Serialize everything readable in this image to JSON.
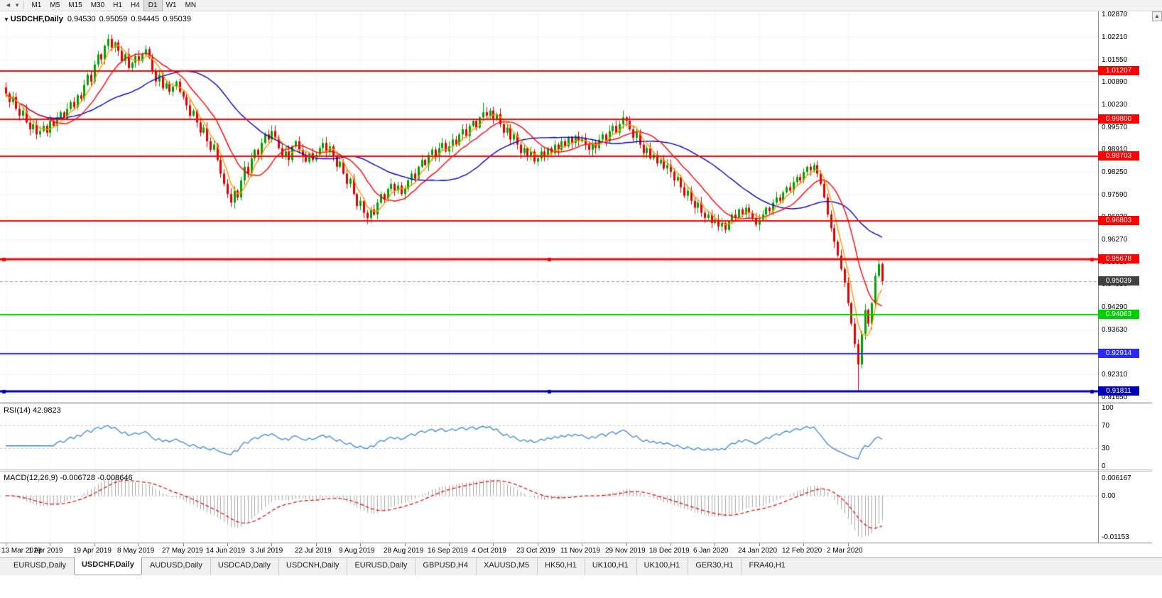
{
  "toolbar": {
    "timeframes": [
      "M1",
      "M5",
      "M15",
      "M30",
      "H1",
      "H4",
      "D1",
      "W1",
      "MN"
    ],
    "active_timeframe": "D1"
  },
  "chart_data": {
    "type": "candlestick",
    "symbol": "USDCHF",
    "timeframe": "Daily",
    "header_symbol": "USDCHF,Daily",
    "ohlc": {
      "open": "0.94530",
      "high": "0.95059",
      "low": "0.94445",
      "close": "0.95039"
    },
    "x_labels": [
      "13 Mar 2019",
      "1 Apr 2019",
      "19 Apr 2019",
      "8 May 2019",
      "27 May 2019",
      "14 Jun 2019",
      "3 Jul 2019",
      "22 Jul 2019",
      "9 Aug 2019",
      "28 Aug 2019",
      "16 Sep 2019",
      "4 Oct 2019",
      "23 Oct 2019",
      "11 Nov 2019",
      "29 Nov 2019",
      "18 Dec 2019",
      "6 Jan 2020",
      "24 Jan 2020",
      "12 Feb 2020",
      "2 Mar 2020"
    ],
    "label_indices": [
      0,
      13,
      26,
      39,
      52,
      65,
      78,
      91,
      104,
      117,
      130,
      143,
      156,
      169,
      182,
      195,
      208,
      221,
      234,
      247
    ],
    "price_axis_labels": [
      "1.02870",
      "1.02210",
      "1.01550",
      "1.00890",
      "1.00230",
      "0.99570",
      "0.98910",
      "0.98250",
      "0.97590",
      "0.96930",
      "0.96270",
      "0.95610",
      "0.94950",
      "0.94290",
      "0.93630",
      "0.92970",
      "0.92310",
      "0.91650"
    ],
    "price_top": 1.0296,
    "price_bottom": 0.915,
    "up_color": "#00A000",
    "down_color": "#E00000",
    "closes": [
      1.0055,
      1.003,
      1.0045,
      1.001,
      0.999,
      1.0005,
      0.997,
      0.995,
      0.9965,
      0.9935,
      0.9945,
      0.996,
      0.994,
      0.9975,
      0.996,
      0.9985,
      1.0,
      0.998,
      1.001,
      1.003,
      1.0015,
      1.005,
      1.004,
      1.008,
      1.011,
      1.009,
      1.014,
      1.017,
      1.0155,
      1.0195,
      1.0215,
      1.019,
      1.0205,
      1.018,
      1.015,
      1.017,
      1.013,
      1.0145,
      1.0165,
      1.015,
      1.017,
      1.0185,
      1.016,
      1.012,
      1.009,
      1.011,
      1.007,
      1.0085,
      1.006,
      1.0075,
      1.009,
      1.006,
      1.0045,
      1.002,
      0.999,
      1.0005,
      0.997,
      0.994,
      0.9955,
      0.9915,
      0.989,
      0.9905,
      0.986,
      0.982,
      0.979,
      0.976,
      0.9735,
      0.977,
      0.975,
      0.98,
      0.984,
      0.982,
      0.9865,
      0.989,
      0.9875,
      0.991,
      0.9935,
      0.992,
      0.9945,
      0.9925,
      0.9895,
      0.987,
      0.9885,
      0.986,
      0.99,
      0.9915,
      0.989,
      0.987,
      0.9855,
      0.988,
      0.986,
      0.9875,
      0.9895,
      0.991,
      0.9885,
      0.99,
      0.987,
      0.984,
      0.9855,
      0.982,
      0.979,
      0.9805,
      0.976,
      0.9725,
      0.974,
      0.9705,
      0.969,
      0.9715,
      0.97,
      0.9735,
      0.976,
      0.9745,
      0.9775,
      0.979,
      0.977,
      0.9785,
      0.976,
      0.9775,
      0.98,
      0.982,
      0.9805,
      0.984,
      0.986,
      0.9845,
      0.9875,
      0.989,
      0.987,
      0.9895,
      0.991,
      0.9885,
      0.99,
      0.992,
      0.9905,
      0.9935,
      0.995,
      0.993,
      0.996,
      0.9975,
      0.9955,
      0.9985,
      1.0,
      0.999,
      1.0005,
      0.998,
      0.9995,
      0.9965,
      0.994,
      0.9955,
      0.992,
      0.9935,
      0.9905,
      0.988,
      0.9895,
      0.987,
      0.9885,
      0.9855,
      0.9865,
      0.9885,
      0.987,
      0.9895,
      0.988,
      0.9905,
      0.989,
      0.9915,
      0.99,
      0.9925,
      0.991,
      0.993,
      0.9915,
      0.9925,
      0.9905,
      0.989,
      0.991,
      0.9895,
      0.992,
      0.9935,
      0.9915,
      0.9945,
      0.996,
      0.994,
      0.9965,
      0.9985,
      0.9975,
      0.995,
      0.9925,
      0.994,
      0.9905,
      0.988,
      0.9895,
      0.9865,
      0.9875,
      0.985,
      0.986,
      0.9835,
      0.9845,
      0.9825,
      0.98,
      0.981,
      0.978,
      0.9755,
      0.977,
      0.974,
      0.972,
      0.9735,
      0.9705,
      0.969,
      0.97,
      0.9675,
      0.9685,
      0.9665,
      0.9675,
      0.9655,
      0.968,
      0.97,
      0.969,
      0.9715,
      0.97,
      0.972,
      0.9705,
      0.969,
      0.967,
      0.9685,
      0.97,
      0.972,
      0.971,
      0.9735,
      0.975,
      0.974,
      0.9765,
      0.978,
      0.977,
      0.9795,
      0.981,
      0.98,
      0.9825,
      0.984,
      0.983,
      0.9845,
      0.982,
      0.979,
      0.975,
      0.97,
      0.966,
      0.962,
      0.958,
      0.954,
      0.95,
      0.944,
      0.938,
      0.932,
      0.926,
      0.935,
      0.942,
      0.938,
      0.944,
      0.952,
      0.9555,
      0.9504
    ],
    "wick_overrides": {
      "30": {
        "h": 1.0229
      },
      "66": {
        "l": 0.9722
      },
      "106": {
        "l": 0.9672
      },
      "140": {
        "h": 1.0028
      },
      "181": {
        "h": 1.0005
      },
      "211": {
        "l": 0.9645
      },
      "250": {
        "l": 0.91811
      },
      "256": {
        "h": 0.957
      }
    },
    "moving_averages": [
      {
        "period": 34,
        "color": "#0000CC"
      },
      {
        "period": 13,
        "color": "#FF0000"
      },
      {
        "period": 5,
        "color": "#FF9900"
      }
    ],
    "hlines": [
      {
        "price": 1.01207,
        "label": "1.01207",
        "color": "#FF0000",
        "width": 2,
        "selected": false
      },
      {
        "price": 0.998,
        "label": "0.99800",
        "color": "#FF0000",
        "width": 2,
        "selected": false
      },
      {
        "price": 0.98703,
        "label": "0.98703",
        "color": "#FF0000",
        "width": 2,
        "selected": false
      },
      {
        "price": 0.96803,
        "label": "0.96803",
        "color": "#FF0000",
        "width": 2,
        "selected": false
      },
      {
        "price": 0.95678,
        "label": "0.95678",
        "color": "#FF0000",
        "width": 3,
        "selected": true
      },
      {
        "price": 0.94063,
        "label": "0.94063",
        "color": "#00D000",
        "width": 2,
        "selected": false
      },
      {
        "price": 0.92914,
        "label": "0.92914",
        "color": "#2A2AFF",
        "width": 2,
        "selected": false
      },
      {
        "price": 0.91811,
        "label": "0.91811",
        "color": "#0000B8",
        "width": 3,
        "selected": true
      }
    ],
    "current_price": {
      "value": 0.95039,
      "label": "0.95039",
      "line_color": "#9a9a9a",
      "box_color": "#404040"
    },
    "rsi": {
      "label": "RSI(14)",
      "value": "42.9823",
      "period": 14,
      "axis_labels": [
        "100",
        "70",
        "30",
        "0"
      ],
      "levels": [
        70,
        30
      ],
      "color": "#3A87D6"
    },
    "macd": {
      "label": "MACD(12,26,9)",
      "value_main": "-0.006728",
      "value_signal": "-0.008646",
      "fast": 12,
      "slow": 26,
      "signal": 9,
      "axis_labels": [
        "0.006167",
        "0.00",
        "-0.01153"
      ],
      "hist_color": "#A8A8A8",
      "signal_color": "#E00000"
    }
  },
  "tabs": [
    {
      "label": "EURUSD,Daily",
      "active": false
    },
    {
      "label": "USDCHF,Daily",
      "active": true
    },
    {
      "label": "AUDUSD,Daily",
      "active": false
    },
    {
      "label": "USDCAD,Daily",
      "active": false
    },
    {
      "label": "USDCNH,Daily",
      "active": false
    },
    {
      "label": "EURUSD,Daily",
      "active": false
    },
    {
      "label": "GBPUSD,H4",
      "active": false
    },
    {
      "label": "XAUUSD,M5",
      "active": false
    },
    {
      "label": "HK50,H1",
      "active": false
    },
    {
      "label": "UK100,H1",
      "active": false
    },
    {
      "label": "UK100,H1",
      "active": false
    },
    {
      "label": "GER30,H1",
      "active": false
    },
    {
      "label": "FRA40,H1",
      "active": false
    }
  ]
}
